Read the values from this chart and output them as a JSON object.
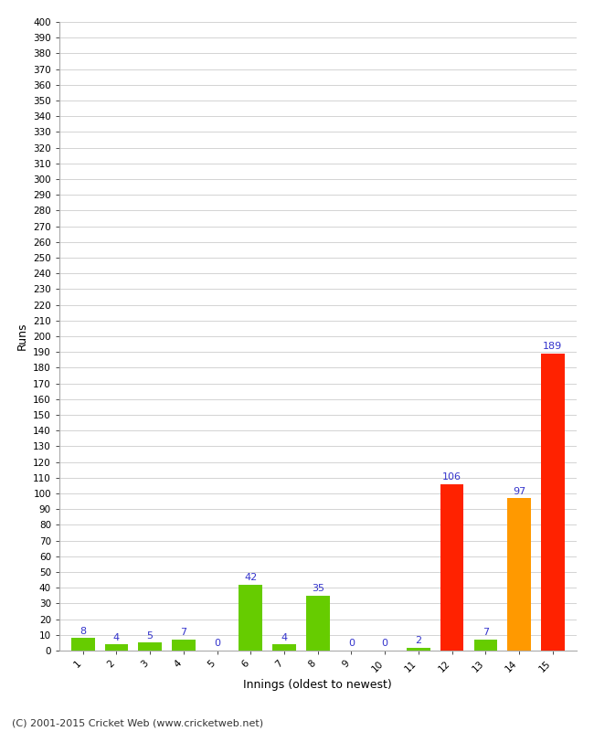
{
  "title": "",
  "xlabel": "Innings (oldest to newest)",
  "ylabel": "Runs",
  "categories": [
    1,
    2,
    3,
    4,
    5,
    6,
    7,
    8,
    9,
    10,
    11,
    12,
    13,
    14,
    15
  ],
  "values": [
    8,
    4,
    5,
    7,
    0,
    42,
    4,
    35,
    0,
    0,
    2,
    106,
    7,
    97,
    189
  ],
  "colors": [
    "#66cc00",
    "#66cc00",
    "#66cc00",
    "#66cc00",
    "#66cc00",
    "#66cc00",
    "#66cc00",
    "#66cc00",
    "#66cc00",
    "#66cc00",
    "#66cc00",
    "#ff2200",
    "#66cc00",
    "#ff9900",
    "#ff2200"
  ],
  "ylim": [
    0,
    400
  ],
  "ytick_step": 10,
  "label_color": "#3333cc",
  "background_color": "#ffffff",
  "grid_color": "#cccccc",
  "footer": "(C) 2001-2015 Cricket Web (www.cricketweb.net)",
  "label_fontsize": 8,
  "tick_fontsize": 7.5,
  "footer_fontsize": 8,
  "bar_width": 0.7
}
